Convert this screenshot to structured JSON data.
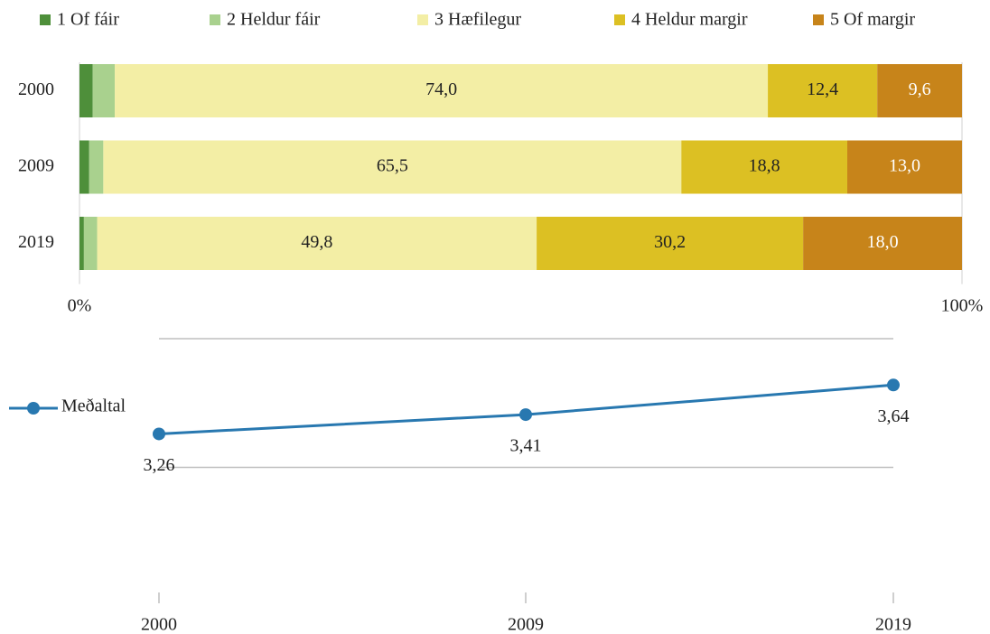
{
  "chart_data": [
    {
      "type": "bar",
      "orientation": "horizontal",
      "stacked": true,
      "categories": [
        "2000",
        "2009",
        "2019"
      ],
      "series": [
        {
          "name": "1 Of fáir",
          "color": "#4e8f3a",
          "label_color": "#222",
          "values": [
            1.5,
            1.1,
            0.5
          ],
          "value_labels": [
            null,
            null,
            null
          ]
        },
        {
          "name": "2 Heldur fáir",
          "color": "#a9d18e",
          "label_color": "#222",
          "values": [
            2.5,
            1.6,
            1.5
          ],
          "value_labels": [
            null,
            null,
            null
          ]
        },
        {
          "name": "3 Hæfilegur",
          "color": "#f3eea5",
          "label_color": "#222",
          "values": [
            74.0,
            65.5,
            49.8
          ],
          "value_labels": [
            "74,0",
            "65,5",
            "49,8"
          ]
        },
        {
          "name": "4 Heldur margir",
          "color": "#dcc023",
          "label_color": "#222",
          "values": [
            12.4,
            18.8,
            30.2
          ],
          "value_labels": [
            "12,4",
            "18,8",
            "30,2"
          ]
        },
        {
          "name": "5 Of margir",
          "color": "#c7841a",
          "label_color": "#ffffff",
          "values": [
            9.6,
            13.0,
            18.0
          ],
          "value_labels": [
            "9,6",
            "13,0",
            "18,0"
          ]
        }
      ],
      "xlim": [
        0,
        100
      ],
      "xticks": [
        {
          "value": 0,
          "label": "0%"
        },
        {
          "value": 100,
          "label": "100%"
        }
      ],
      "legend": "top"
    },
    {
      "type": "line",
      "categories": [
        "2000",
        "2009",
        "2019"
      ],
      "series": [
        {
          "name": "Meðaltal",
          "color": "#2878b0",
          "values": [
            3.26,
            3.41,
            3.64
          ],
          "value_labels": [
            "3,26",
            "3,41",
            "3,64"
          ]
        }
      ],
      "ylim": [
        2,
        4
      ],
      "yticks": [
        3,
        4
      ],
      "grid": true,
      "legend": "left"
    }
  ]
}
